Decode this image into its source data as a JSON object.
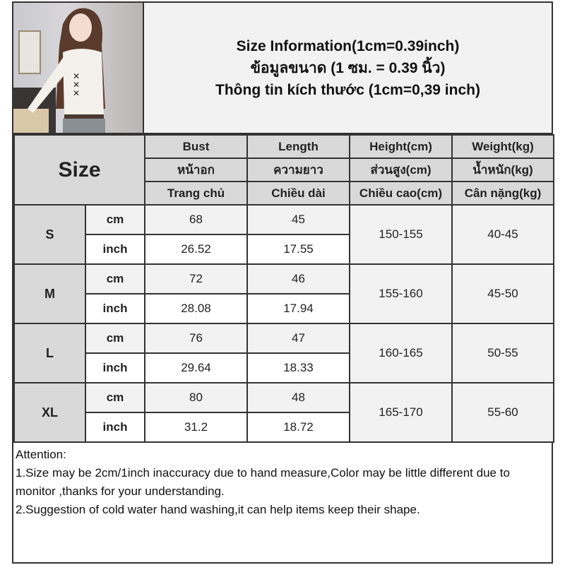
{
  "title_lines": [
    "Size Information(1cm=0.39inch)",
    "ข้อมูลขนาด (1 ซม. = 0.39 นิ้ว)",
    "Thông tin kích thước (1cm=0,39 inch)"
  ],
  "size_header": "Size",
  "columns": [
    {
      "en": "Bust",
      "th": "หน้าอก",
      "vi": "Trang chủ"
    },
    {
      "en": "Length",
      "th": "ความยาว",
      "vi": "Chiều dài"
    },
    {
      "en": "Height(cm)",
      "th": "ส่วนสูง(cm)",
      "vi": "Chiều cao(cm)"
    },
    {
      "en": "Weight(kg)",
      "th": "น้ำหนัก(kg)",
      "vi": "Cân nặng(kg)"
    }
  ],
  "units": {
    "cm": "cm",
    "inch": "inch"
  },
  "rows": [
    {
      "size": "S",
      "bust_cm": "68",
      "length_cm": "45",
      "bust_in": "26.52",
      "length_in": "17.55",
      "height": "150-155",
      "weight": "40-45"
    },
    {
      "size": "M",
      "bust_cm": "72",
      "length_cm": "46",
      "bust_in": "28.08",
      "length_in": "17.94",
      "height": "155-160",
      "weight": "45-50"
    },
    {
      "size": "L",
      "bust_cm": "76",
      "length_cm": "47",
      "bust_in": "29.64",
      "length_in": "18.33",
      "height": "160-165",
      "weight": "50-55"
    },
    {
      "size": "XL",
      "bust_cm": "80",
      "length_cm": "48",
      "bust_in": "31.2",
      "length_in": "18.72",
      "height": "165-170",
      "weight": "55-60"
    }
  ],
  "attention": {
    "heading": "Attention:",
    "lines": [
      "1.Size may be 2cm/1inch inaccuracy due to hand measure,Color may be little different due to monitor ,thanks for your understanding.",
      "2.Suggestion of cold water hand washing,it can help items keep their shape."
    ]
  },
  "colors": {
    "header_bg": "#d9d9d9",
    "light_bg": "#f2f2f2",
    "border": "#333333"
  }
}
